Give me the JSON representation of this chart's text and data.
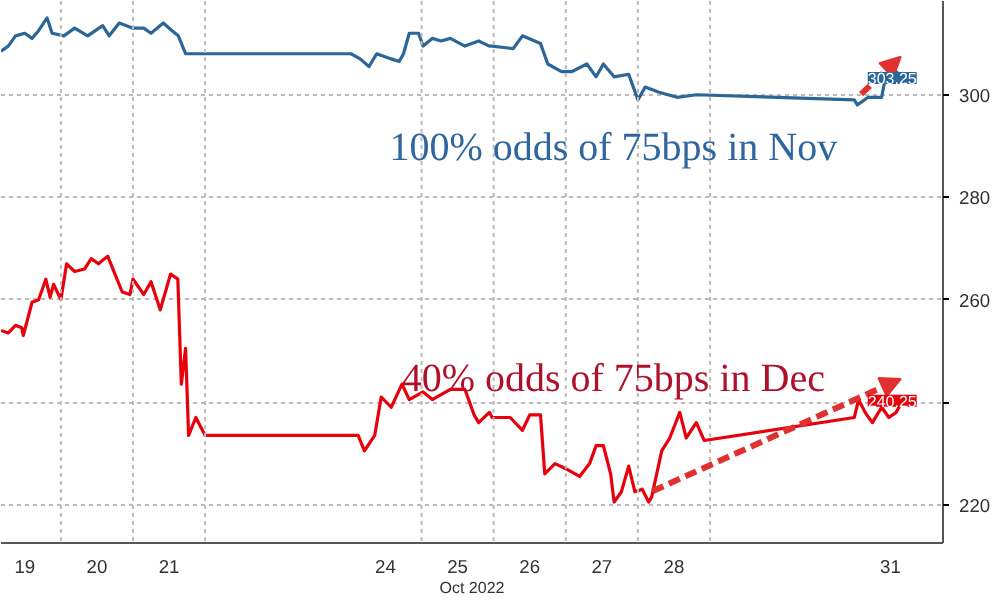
{
  "chart_data": {
    "type": "line",
    "xlabel": "Oct 2022",
    "xlim": [
      "2022-10-19T04:05",
      "2022-11-01T05:30"
    ],
    "ylim": [
      212.5,
      318.3
    ],
    "xticks": [
      {
        "value": "2022-10-19T12:00",
        "label": "19"
      },
      {
        "value": "2022-10-20T00:00",
        "label": null
      },
      {
        "value": "2022-10-20T12:00",
        "label": "20"
      },
      {
        "value": "2022-10-21T00:00",
        "label": null
      },
      {
        "value": "2022-10-21T12:00",
        "label": "21"
      },
      {
        "value": "2022-10-22T00:00",
        "label": null
      },
      {
        "value": "2022-10-24T12:00",
        "label": "24"
      },
      {
        "value": "2022-10-25T00:00",
        "label": null
      },
      {
        "value": "2022-10-25T12:00",
        "label": "25"
      },
      {
        "value": "2022-10-26T00:00",
        "label": null
      },
      {
        "value": "2022-10-26T12:00",
        "label": "26"
      },
      {
        "value": "2022-10-27T00:00",
        "label": null
      },
      {
        "value": "2022-10-27T12:00",
        "label": "27"
      },
      {
        "value": "2022-10-28T00:00",
        "label": null
      },
      {
        "value": "2022-10-28T12:00",
        "label": "28"
      },
      {
        "value": "2022-10-29T00:00",
        "label": null
      },
      {
        "value": "2022-10-31T12:00",
        "label": "31"
      }
    ],
    "yticks": [
      220,
      {
        "value": 240,
        "label": null
      },
      260,
      280,
      300
    ],
    "grid": true,
    "line_style": "solid",
    "series": [
      {
        "color": "#2b6699",
        "x": [
          "2022-10-19T04:05",
          "2022-10-19T06:30",
          "2022-10-19T08:55",
          "2022-10-19T12:00",
          "2022-10-19T14:25",
          "2022-10-19T16:35",
          "2022-10-19T19:25",
          "2022-10-19T21:05",
          "2022-10-20T01:00",
          "2022-10-20T04:35",
          "2022-10-20T08:55",
          "2022-10-20T13:55",
          "2022-10-20T16:05",
          "2022-10-20T19:25",
          "2022-10-21T00:00",
          "2022-10-21T03:35",
          "2022-10-21T06:00",
          "2022-10-21T10:05",
          "2022-10-21T13:00",
          "2022-10-21T15:05",
          "2022-10-21T17:30",
          "2022-10-21T20:55",
          "2022-10-24T00:30",
          "2022-10-24T03:35",
          "2022-10-24T06:30",
          "2022-10-24T09:05",
          "2022-10-24T13:55",
          "2022-10-24T16:35",
          "2022-10-24T18:00",
          "2022-10-24T19:55",
          "2022-10-24T23:00",
          "2022-10-25T00:30",
          "2022-10-25T03:35",
          "2022-10-25T06:30",
          "2022-10-25T09:35",
          "2022-10-25T14:25",
          "2022-10-25T19:00",
          "2022-10-25T22:35",
          "2022-10-25T23:30",
          "2022-10-26T06:30",
          "2022-10-26T09:35",
          "2022-10-26T15:35",
          "2022-10-26T18:00",
          "2022-10-26T22:35",
          "2022-10-27T01:55",
          "2022-10-27T07:00",
          "2022-10-27T10:05",
          "2022-10-27T12:30",
          "2022-10-27T16:05",
          "2022-10-27T20:55",
          "2022-10-28T00:00",
          "2022-10-28T02:25",
          "2022-10-28T07:00",
          "2022-10-28T13:00",
          "2022-10-28T19:25",
          "2022-10-31T00:00",
          "2022-10-31T01:00",
          "2022-10-31T04:35",
          "2022-10-31T09:05",
          "2022-10-31T10:35",
          "2022-10-31T13:00",
          "2022-10-31T13:55",
          "2022-10-31T16:05"
        ],
        "values": [
          308.5,
          309.5,
          311.5,
          312,
          311,
          312.5,
          315,
          312,
          311.5,
          313,
          311.5,
          313.5,
          311.5,
          314,
          313,
          313,
          312,
          314,
          312.5,
          311.5,
          308,
          308,
          308,
          307,
          305.5,
          308,
          307,
          306.5,
          308,
          312,
          312,
          309.5,
          311,
          310.5,
          311,
          309.5,
          310.5,
          309.5,
          309.5,
          309,
          311.5,
          310,
          306,
          304.5,
          304.5,
          306,
          303.5,
          306,
          303.5,
          304,
          299,
          301.5,
          300.5,
          299.5,
          300,
          299,
          298,
          299.5,
          299.5,
          304,
          302.5,
          304.5,
          303.2
        ]
      },
      {
        "color": "#e8000b",
        "x": [
          "2022-10-19T04:05",
          "2022-10-19T06:30",
          "2022-10-19T08:55",
          "2022-10-19T11:00",
          "2022-10-19T11:30",
          "2022-10-19T14:25",
          "2022-10-19T16:35",
          "2022-10-19T19:00",
          "2022-10-19T20:25",
          "2022-10-19T21:35",
          "2022-10-20T00:00",
          "2022-10-20T01:55",
          "2022-10-20T04:35",
          "2022-10-20T07:55",
          "2022-10-20T10:05",
          "2022-10-20T12:30",
          "2022-10-20T15:35",
          "2022-10-20T18:00",
          "2022-10-20T20:25",
          "2022-10-20T23:00",
          "2022-10-21T00:00",
          "2022-10-21T03:35",
          "2022-10-21T06:00",
          "2022-10-21T09:05",
          "2022-10-21T12:30",
          "2022-10-21T14:55",
          "2022-10-21T16:05",
          "2022-10-21T17:30",
          "2022-10-21T18:30",
          "2022-10-21T20:55",
          "2022-10-22T00:00",
          "2022-10-24T02:55",
          "2022-10-24T05:00",
          "2022-10-24T08:25",
          "2022-10-24T10:35",
          "2022-10-24T13:55",
          "2022-10-24T17:30",
          "2022-10-24T19:55",
          "2022-10-25T00:30",
          "2022-10-25T03:35",
          "2022-10-25T09:35",
          "2022-10-25T14:25",
          "2022-10-25T17:30",
          "2022-10-25T19:00",
          "2022-10-25T22:35",
          "2022-10-25T23:30",
          "2022-10-26T05:30",
          "2022-10-26T09:35",
          "2022-10-26T12:00",
          "2022-10-26T15:35",
          "2022-10-26T17:00",
          "2022-10-26T20:25",
          "2022-10-27T00:00",
          "2022-10-27T04:35",
          "2022-10-27T07:55",
          "2022-10-27T10:05",
          "2022-10-27T12:30",
          "2022-10-27T14:55",
          "2022-10-27T16:05",
          "2022-10-27T18:30",
          "2022-10-27T20:55",
          "2022-10-27T23:00",
          "2022-10-28T01:25",
          "2022-10-28T03:35",
          "2022-10-28T04:35",
          "2022-10-28T07:55",
          "2022-10-28T10:35",
          "2022-10-28T13:55",
          "2022-10-28T16:05",
          "2022-10-28T19:25",
          "2022-10-28T22:05",
          "2022-10-31T00:00",
          "2022-10-31T01:25",
          "2022-10-31T03:35",
          "2022-10-31T06:00",
          "2022-10-31T09:05",
          "2022-10-31T11:30",
          "2022-10-31T13:55",
          "2022-10-31T16:05"
        ],
        "values": [
          254,
          253.5,
          255,
          254.5,
          253,
          259.5,
          260,
          264,
          260.5,
          263,
          260,
          267,
          265.5,
          266,
          268,
          267,
          268.5,
          265,
          261.5,
          261,
          264,
          261,
          263.5,
          258,
          265,
          264,
          243.5,
          250.5,
          233.5,
          237,
          233.5,
          233.5,
          230.5,
          233.5,
          241,
          239,
          243.5,
          240.5,
          242,
          240.5,
          242.5,
          242.5,
          237.5,
          236,
          238,
          237,
          237,
          234.5,
          237.5,
          237.5,
          226,
          228,
          227,
          225.5,
          228,
          231.5,
          231.5,
          226,
          220.5,
          222.5,
          227.5,
          222.5,
          223,
          220.5,
          221.5,
          230.5,
          233,
          238,
          233,
          236,
          232.5,
          237,
          240.5,
          238,
          236,
          239,
          237,
          238,
          240.3
        ]
      }
    ],
    "annotations": [
      "100% odds of 75bps in Nov",
      "40% odds of 75bps in Dec",
      {
        "text": "303.25",
        "x": "2022-10-31T16:05",
        "y": 303.25
      },
      {
        "text": "240.25",
        "x": "2022-10-31T16:05",
        "y": 240.25
      }
    ]
  }
}
